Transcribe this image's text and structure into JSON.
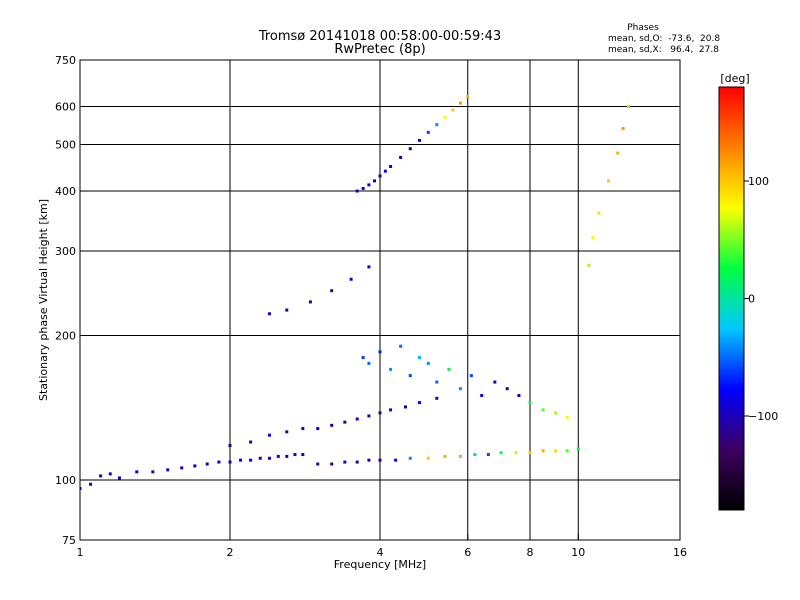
{
  "chart_data": {
    "type": "scatter",
    "title": "Tromsø 20141018 00:58:00-00:59:43",
    "subtitle": "RwPretec (8p)",
    "xlabel": "Frequency [MHz]",
    "ylabel": "Stationary phase Virtual Height [km]",
    "x_scale": "log",
    "y_scale": "log",
    "xlim": [
      1,
      16
    ],
    "ylim": [
      75,
      750
    ],
    "x_ticks": [
      1,
      2,
      4,
      6,
      8,
      10,
      16
    ],
    "x_tick_labels": [
      "1",
      "2",
      "4",
      "6",
      "8",
      "10",
      "16"
    ],
    "y_ticks": [
      75,
      100,
      200,
      300,
      400,
      500,
      600,
      750
    ],
    "y_tick_labels": [
      "75",
      "100",
      "200",
      "300",
      "400",
      "500",
      "600",
      "750"
    ],
    "grid": true,
    "phase_info": {
      "heading": "Phases",
      "line_o": "mean, sd,O:  -73.6,  20.8",
      "line_x": "mean, sd,X:   96.4,  27.8"
    },
    "colorbar": {
      "label": "[deg]",
      "range": [
        -180,
        180
      ],
      "ticks": [
        -100,
        0,
        100
      ],
      "tick_labels": [
        "−100",
        "0",
        "100"
      ],
      "colors": [
        "#000000",
        "#3c0060",
        "#0000ff",
        "#00c8ff",
        "#00ff40",
        "#ffff00",
        "#ff8000",
        "#ff0000"
      ]
    },
    "series": [
      {
        "x": [
          1.0,
          1.05,
          1.1,
          1.15,
          1.2,
          1.3,
          1.4,
          1.5,
          1.6,
          1.7,
          1.8,
          1.9,
          2.0,
          2.1,
          2.2,
          2.3,
          2.4,
          2.5,
          2.6,
          2.7,
          2.8
        ],
        "y": [
          96,
          98,
          102,
          103,
          101,
          104,
          104,
          105,
          106,
          107,
          108,
          109,
          109,
          110,
          110,
          111,
          111,
          112,
          112,
          113,
          113
        ],
        "phase": [
          -90,
          -95,
          -100,
          -90,
          -100,
          -95,
          -100,
          -95,
          -100,
          -95,
          -100,
          -95,
          -100,
          -90,
          -95,
          -100,
          -90,
          -95,
          -100,
          -90,
          -95
        ]
      },
      {
        "x": [
          3.0,
          3.2,
          3.4,
          3.6,
          3.8,
          4.0,
          4.3,
          4.6,
          5.0,
          5.4,
          5.8,
          6.2,
          6.6,
          7.0,
          7.5,
          8.0,
          8.5,
          9.0,
          9.5,
          10.0
        ],
        "y": [
          108,
          108,
          109,
          109,
          110,
          110,
          110,
          111,
          111,
          112,
          112,
          113,
          113,
          114,
          114,
          114,
          115,
          115,
          115,
          116
        ],
        "phase": [
          -110,
          -110,
          -105,
          -105,
          -100,
          -100,
          -90,
          -40,
          100,
          110,
          40,
          -20,
          -60,
          20,
          60,
          100,
          110,
          90,
          40,
          20
        ]
      },
      {
        "x": [
          2.0,
          2.2,
          2.4,
          2.6,
          2.8,
          3.0,
          3.2,
          3.4,
          3.6,
          3.8,
          4.0,
          4.2,
          4.5,
          4.8,
          5.2
        ],
        "y": [
          118,
          120,
          124,
          126,
          128,
          128,
          130,
          132,
          134,
          136,
          138,
          140,
          142,
          145,
          148
        ],
        "phase": [
          -110,
          -100,
          -90,
          -110,
          -100,
          -90,
          -100,
          -110,
          -90,
          -100,
          -110,
          -90,
          -100,
          -80,
          -100
        ]
      },
      {
        "x": [
          2.4,
          2.6,
          2.9,
          3.2,
          3.5,
          3.8
        ],
        "y": [
          222,
          226,
          235,
          248,
          262,
          278
        ],
        "phase": [
          -100,
          -95,
          -100,
          -110,
          -100,
          -95
        ]
      },
      {
        "x": [
          3.6,
          3.7,
          3.8,
          3.9,
          4.0,
          4.1,
          4.2,
          4.4,
          4.6,
          4.8,
          5.0,
          5.2,
          5.4,
          5.6,
          5.8,
          6.0
        ],
        "y": [
          400,
          405,
          412,
          420,
          430,
          440,
          450,
          470,
          490,
          510,
          530,
          550,
          570,
          590,
          610,
          630
        ],
        "phase": [
          -100,
          -95,
          -90,
          -100,
          -110,
          -90,
          -100,
          -95,
          -110,
          -100,
          -60,
          -40,
          80,
          100,
          120,
          110
        ]
      },
      {
        "x": [
          3.7,
          3.8,
          4.0,
          4.2,
          4.4,
          4.6,
          4.8,
          5.0,
          5.2,
          5.5,
          5.8,
          6.1,
          6.4,
          6.8,
          7.2,
          7.6,
          8.0,
          8.5,
          9.0,
          9.5
        ],
        "y": [
          180,
          175,
          185,
          170,
          190,
          165,
          180,
          175,
          160,
          170,
          155,
          165,
          150,
          160,
          155,
          150,
          145,
          140,
          138,
          135
        ],
        "phase": [
          -60,
          -50,
          -70,
          -40,
          -50,
          -60,
          -30,
          -40,
          -50,
          20,
          -40,
          -60,
          -90,
          -100,
          -110,
          -100,
          20,
          40,
          60,
          80
        ]
      },
      {
        "x": [
          10.5,
          10.7,
          11.0,
          11.5,
          12.0,
          12.3,
          12.6
        ],
        "y": [
          280,
          320,
          360,
          420,
          480,
          540,
          600
        ],
        "phase": [
          60,
          80,
          90,
          100,
          110,
          120,
          100
        ]
      }
    ]
  }
}
